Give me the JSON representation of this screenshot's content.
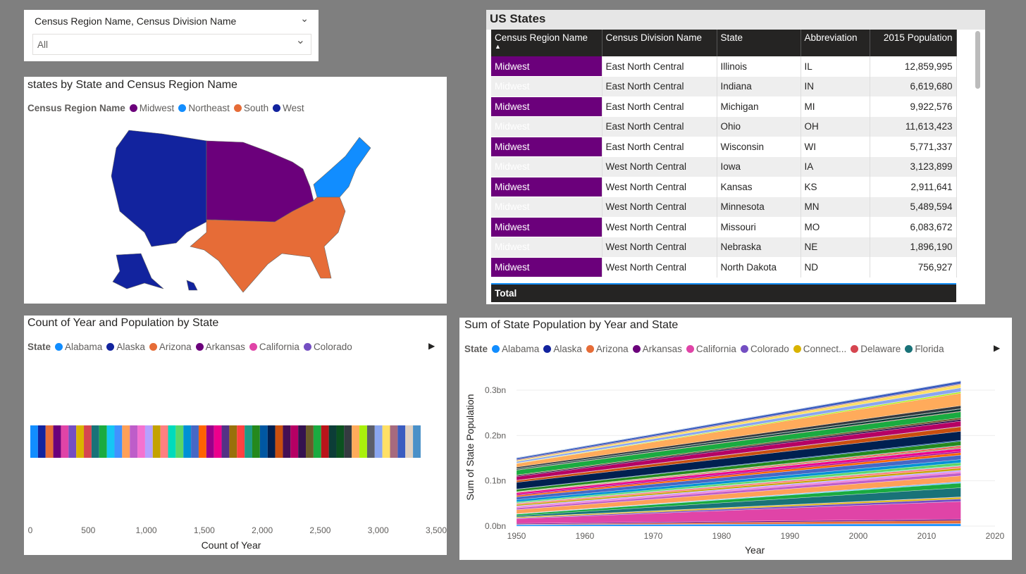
{
  "slicer": {
    "title": "Census Region Name, Census Division Name",
    "value": "All"
  },
  "map": {
    "title": "states by State and Census Region Name",
    "legend_label": "Census Region Name",
    "regions": [
      {
        "name": "Midwest",
        "color": "#6B007B"
      },
      {
        "name": "Northeast",
        "color": "#118DFF"
      },
      {
        "name": "South",
        "color": "#E66C37"
      },
      {
        "name": "West",
        "color": "#12239E"
      }
    ]
  },
  "table": {
    "title": "US States",
    "columns": [
      "Census Region Name",
      "Census Division Name",
      "State",
      "Abbreviation",
      "2015 Population"
    ],
    "sort_indicator": "▲",
    "rows": [
      [
        "Midwest",
        "East North Central",
        "Illinois",
        "IL",
        "12,859,995"
      ],
      [
        "Midwest",
        "East North Central",
        "Indiana",
        "IN",
        "6,619,680"
      ],
      [
        "Midwest",
        "East North Central",
        "Michigan",
        "MI",
        "9,922,576"
      ],
      [
        "Midwest",
        "East North Central",
        "Ohio",
        "OH",
        "11,613,423"
      ],
      [
        "Midwest",
        "East North Central",
        "Wisconsin",
        "WI",
        "5,771,337"
      ],
      [
        "Midwest",
        "West North Central",
        "Iowa",
        "IA",
        "3,123,899"
      ],
      [
        "Midwest",
        "West North Central",
        "Kansas",
        "KS",
        "2,911,641"
      ],
      [
        "Midwest",
        "West North Central",
        "Minnesota",
        "MN",
        "5,489,594"
      ],
      [
        "Midwest",
        "West North Central",
        "Missouri",
        "MO",
        "6,083,672"
      ],
      [
        "Midwest",
        "West North Central",
        "Nebraska",
        "NE",
        "1,896,190"
      ],
      [
        "Midwest",
        "West North Central",
        "North Dakota",
        "ND",
        "756,927"
      ]
    ],
    "total_label": "Total"
  },
  "states": [
    {
      "name": "Alabama",
      "color": "#118DFF"
    },
    {
      "name": "Alaska",
      "color": "#12239E"
    },
    {
      "name": "Arizona",
      "color": "#E66C37"
    },
    {
      "name": "Arkansas",
      "color": "#6B007B"
    },
    {
      "name": "California",
      "color": "#E044A7"
    },
    {
      "name": "Colorado",
      "color": "#744EC2"
    },
    {
      "name": "Connect...",
      "color": "#D9B300"
    },
    {
      "name": "Delaware",
      "color": "#D64550"
    },
    {
      "name": "Florida",
      "color": "#197278"
    },
    {
      "color": "#1AAB40"
    },
    {
      "color": "#15C6F4"
    },
    {
      "color": "#4092FF"
    },
    {
      "color": "#FFA058"
    },
    {
      "color": "#BE5DC9"
    },
    {
      "color": "#F472D0"
    },
    {
      "color": "#B5A1FF"
    },
    {
      "color": "#C4A200"
    },
    {
      "color": "#FF8080"
    },
    {
      "color": "#00DBBC"
    },
    {
      "color": "#5BD667"
    },
    {
      "color": "#0091D5"
    },
    {
      "color": "#4668C5"
    },
    {
      "color": "#FF6300"
    },
    {
      "color": "#99008A"
    },
    {
      "color": "#EC008C"
    },
    {
      "color": "#533285"
    },
    {
      "color": "#99700A"
    },
    {
      "color": "#FF4141"
    },
    {
      "color": "#1F9A85"
    },
    {
      "color": "#25891C"
    },
    {
      "color": "#0057A2"
    },
    {
      "color": "#002050"
    },
    {
      "color": "#C94F0F"
    },
    {
      "color": "#450F54"
    },
    {
      "color": "#B60064"
    },
    {
      "color": "#34124F"
    },
    {
      "color": "#6A5A29"
    },
    {
      "color": "#1AAB40"
    },
    {
      "color": "#BA141A"
    },
    {
      "color": "#0C3D37"
    },
    {
      "color": "#0B511F"
    },
    {
      "color": "#343A40"
    },
    {
      "color": "#FFAB5B"
    },
    {
      "color": "#A9F00C"
    },
    {
      "color": "#5B5E6B"
    },
    {
      "color": "#8AA6F0"
    },
    {
      "color": "#FFE066"
    },
    {
      "color": "#A66A7E"
    },
    {
      "color": "#3A5CC0"
    },
    {
      "color": "#E0D0C0"
    },
    {
      "color": "#4A90C8"
    }
  ],
  "chart_data": [
    {
      "type": "bar",
      "orientation": "horizontal-stacked",
      "title": "Count of Year and Population by State",
      "legend_label": "State",
      "legend_visible_count": 6,
      "xlabel": "Count of Year",
      "xlim": [
        0,
        3500
      ],
      "xticks": [
        "0",
        "500",
        "1,000",
        "1,500",
        "2,000",
        "2,500",
        "3,000",
        "3,500"
      ],
      "segment_value_per_state": 66,
      "legend_position": "top"
    },
    {
      "type": "area",
      "stacked": true,
      "title": "Sum of State Population by Year and State",
      "legend_label": "State",
      "legend_visible_count": 9,
      "xlabel": "Year",
      "ylabel": "Sum of State Population",
      "xlim": [
        1950,
        2020
      ],
      "ylim": [
        0,
        0.33
      ],
      "xticks": [
        "1950",
        "1960",
        "1970",
        "1980",
        "1990",
        "2000",
        "2010",
        "2020"
      ],
      "yticks": [
        "0.0bn",
        "0.1bn",
        "0.2bn",
        "0.3bn"
      ],
      "x": [
        1950,
        2015
      ],
      "unit": "millions",
      "values": [
        [
          3.06,
          4.86
        ],
        [
          0.13,
          0.74
        ],
        [
          0.75,
          6.83
        ],
        [
          1.91,
          2.98
        ],
        [
          10.6,
          39.1
        ],
        [
          1.33,
          5.46
        ],
        [
          2.0,
          3.59
        ],
        [
          0.32,
          0.95
        ],
        [
          2.77,
          20.3
        ],
        [
          3.44,
          10.2
        ],
        [
          0.5,
          1.43
        ],
        [
          0.59,
          1.65
        ],
        [
          8.71,
          12.86
        ],
        [
          3.93,
          6.62
        ],
        [
          2.62,
          3.12
        ],
        [
          1.91,
          2.91
        ],
        [
          2.94,
          4.43
        ],
        [
          2.68,
          4.67
        ],
        [
          0.91,
          1.33
        ],
        [
          2.34,
          6.0
        ],
        [
          4.69,
          6.79
        ],
        [
          6.37,
          9.92
        ],
        [
          2.98,
          5.49
        ],
        [
          2.18,
          2.99
        ],
        [
          3.95,
          6.08
        ],
        [
          0.59,
          1.03
        ],
        [
          1.33,
          1.9
        ],
        [
          0.16,
          2.89
        ],
        [
          0.53,
          1.33
        ],
        [
          4.84,
          8.96
        ],
        [
          0.68,
          2.09
        ],
        [
          14.83,
          19.8
        ],
        [
          4.06,
          10.04
        ],
        [
          0.62,
          0.76
        ],
        [
          7.95,
          11.61
        ],
        [
          2.23,
          3.91
        ],
        [
          1.52,
          4.03
        ],
        [
          10.5,
          12.8
        ],
        [
          0.79,
          1.06
        ],
        [
          2.12,
          4.9
        ],
        [
          0.65,
          0.86
        ],
        [
          3.29,
          6.6
        ],
        [
          7.71,
          27.47
        ],
        [
          0.69,
          2.99
        ],
        [
          0.38,
          0.63
        ],
        [
          3.32,
          8.38
        ],
        [
          2.38,
          7.17
        ],
        [
          2.0,
          1.84
        ],
        [
          3.43,
          5.77
        ],
        [
          0.29,
          0.59
        ],
        [
          0.8,
          0.67
        ]
      ]
    }
  ]
}
